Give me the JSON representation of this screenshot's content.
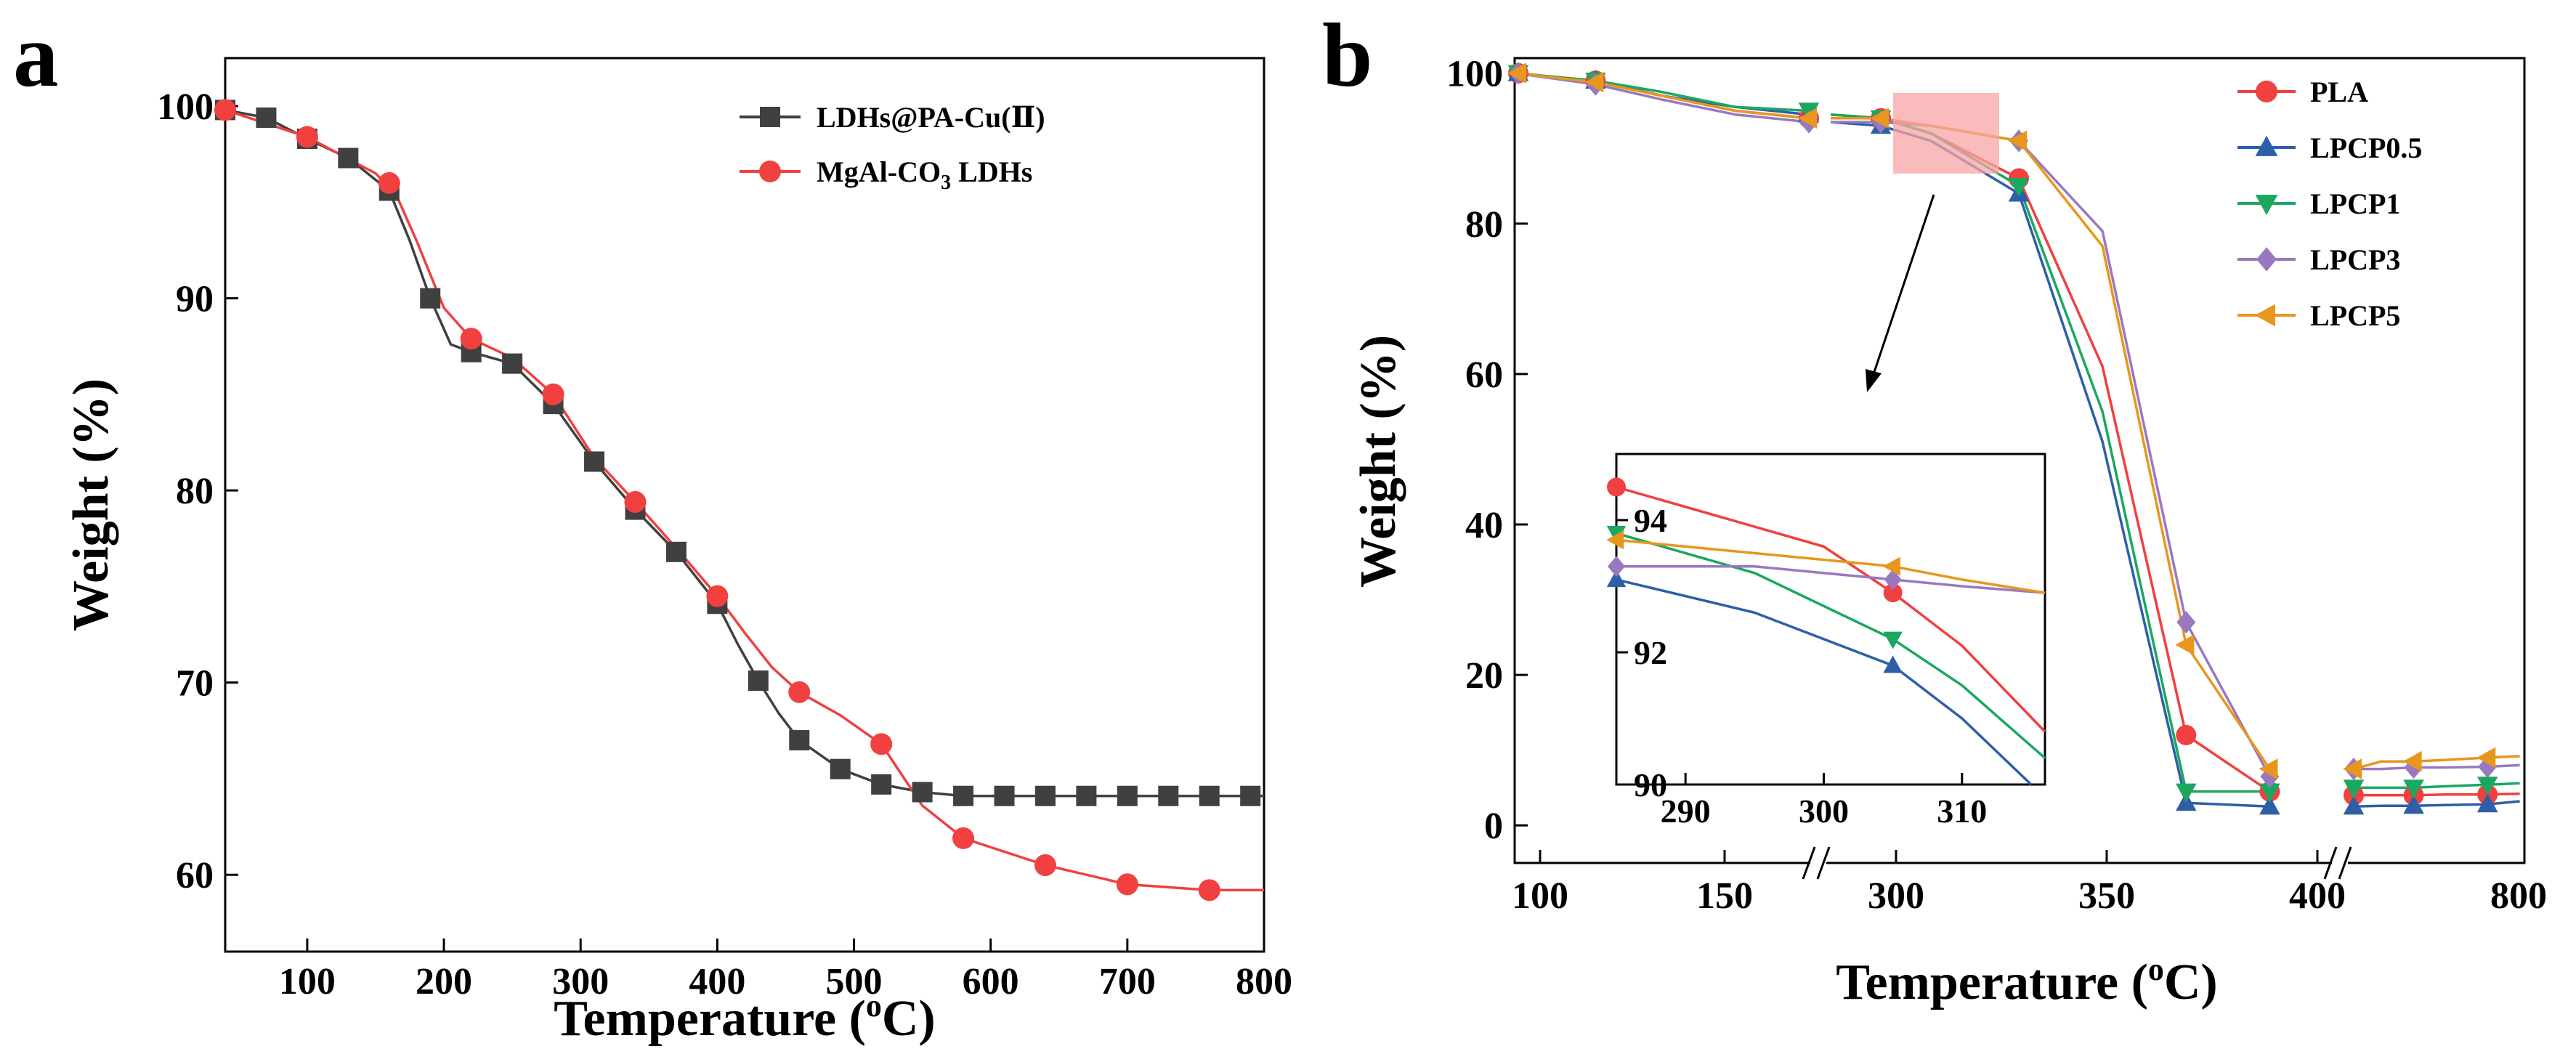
{
  "chart_data": [
    {
      "panel": "a",
      "type": "line",
      "xlabel": "Temperature (oC)",
      "ylabel": "Weight (%)",
      "xlim": [
        40,
        800
      ],
      "ylim": [
        56,
        102.5
      ],
      "xticks": [
        100,
        200,
        300,
        400,
        500,
        600,
        700,
        800
      ],
      "yticks": [
        60,
        70,
        80,
        90,
        100
      ],
      "legend_position": "top-right",
      "series": [
        {
          "name": "LDHs@PA-Cu(Ⅱ)",
          "color": "#404040",
          "marker": "square",
          "x": [
            40,
            70,
            100,
            130,
            160,
            190,
            220,
            250,
            280,
            310,
            340,
            370,
            400,
            430,
            460,
            490,
            520,
            550,
            580,
            610,
            640,
            670,
            700,
            730,
            760,
            790
          ],
          "y": [
            99.8,
            99.4,
            98.3,
            97.3,
            95.6,
            90.0,
            87.2,
            86.6,
            84.5,
            81.5,
            79.0,
            76.8,
            74.1,
            70.1,
            67.0,
            65.5,
            64.7,
            64.3,
            64.1,
            64.1,
            64.1,
            64.1,
            64.1,
            64.1,
            64.1,
            64.1
          ],
          "curve_x": [
            40,
            70,
            100,
            130,
            160,
            175,
            190,
            205,
            220,
            250,
            280,
            310,
            340,
            370,
            400,
            415,
            430,
            445,
            460,
            490,
            520,
            550,
            580,
            620,
            700,
            800
          ],
          "curve_y": [
            99.8,
            99.4,
            98.3,
            97.3,
            95.6,
            93.0,
            90.0,
            87.6,
            87.2,
            86.6,
            84.5,
            81.5,
            79.0,
            76.8,
            74.1,
            72.0,
            70.1,
            68.4,
            67.0,
            65.5,
            64.7,
            64.3,
            64.1,
            64.1,
            64.1,
            64.1
          ]
        },
        {
          "name": "MgAl-CO3 LDHs",
          "color": "#f04040",
          "marker": "circle",
          "x": [
            40,
            100,
            160,
            220,
            280,
            340,
            400,
            460,
            520,
            580,
            640,
            700,
            760
          ],
          "y": [
            99.8,
            98.4,
            96.0,
            87.9,
            85.0,
            79.4,
            74.5,
            69.5,
            66.8,
            61.9,
            60.5,
            59.5,
            59.2
          ],
          "curve_x": [
            40,
            100,
            150,
            165,
            180,
            200,
            220,
            250,
            280,
            310,
            340,
            370,
            400,
            420,
            440,
            460,
            490,
            520,
            535,
            550,
            580,
            640,
            700,
            760,
            800
          ],
          "curve_y": [
            99.8,
            98.4,
            96.5,
            95.4,
            93.0,
            89.5,
            87.9,
            86.9,
            85.0,
            81.7,
            79.4,
            77.0,
            74.5,
            72.6,
            70.8,
            69.5,
            68.3,
            66.8,
            65.2,
            63.6,
            61.9,
            60.5,
            59.5,
            59.2,
            59.2
          ]
        }
      ]
    },
    {
      "panel": "b",
      "type": "line",
      "xlabel": "Temperature (oC)",
      "ylabel": "Weight (%)",
      "x_axis_breaks": "two breaks: one between 150 and ~285 (°C), one just after 400",
      "xticks": [
        100,
        150,
        300,
        350,
        400,
        800
      ],
      "yticks": [
        0,
        20,
        40,
        60,
        80,
        100
      ],
      "ylim": [
        -5,
        102
      ],
      "legend_position": "top-right",
      "series": [
        {
          "name": "PLA",
          "color": "#f04040",
          "marker": "circle",
          "x": [
            90,
            112,
            130,
            150,
            170,
            285,
            297,
            309,
            330,
            350,
            370,
            390,
            430,
            490,
            560,
            630,
            720,
            790
          ],
          "y": [
            100,
            99,
            97,
            95,
            94,
            94.5,
            94,
            92,
            86,
            61,
            12,
            4.5,
            4,
            4,
            4,
            4.1,
            4.1,
            4.2
          ]
        },
        {
          "name": "LPCP0.5",
          "color": "#2d5fa8",
          "marker": "triangle-up",
          "x": [
            90,
            112,
            130,
            150,
            170,
            285,
            297,
            309,
            330,
            350,
            370,
            390,
            430,
            490,
            560,
            630,
            720,
            790
          ],
          "y": [
            100,
            99,
            97,
            95.5,
            94.5,
            93.5,
            93,
            91,
            84,
            51,
            3,
            2.5,
            2.5,
            2.6,
            2.6,
            2.7,
            2.8,
            3.2
          ]
        },
        {
          "name": "LPCP1",
          "color": "#1aa860",
          "marker": "triangle-down",
          "x": [
            90,
            112,
            130,
            150,
            170,
            285,
            297,
            309,
            330,
            350,
            370,
            390,
            430,
            490,
            560,
            630,
            720,
            790
          ],
          "y": [
            100,
            99,
            97.5,
            95.5,
            95,
            94.5,
            94,
            92,
            85,
            55,
            4.5,
            4.5,
            5,
            5,
            5,
            5.2,
            5.4,
            5.6
          ]
        },
        {
          "name": "LPCP3",
          "color": "#9a78c0",
          "marker": "diamond",
          "x": [
            90,
            112,
            130,
            150,
            170,
            285,
            297,
            309,
            330,
            350,
            370,
            390,
            430,
            490,
            560,
            630,
            720,
            790
          ],
          "y": [
            100,
            98.5,
            96.5,
            94.5,
            93.5,
            93.5,
            93.5,
            93,
            91,
            79,
            27,
            6.5,
            7.5,
            7.5,
            7.7,
            7.7,
            7.8,
            8
          ]
        },
        {
          "name": "LPCP5",
          "color": "#e8961e",
          "marker": "triangle-left",
          "x": [
            90,
            112,
            130,
            150,
            170,
            285,
            297,
            309,
            330,
            350,
            370,
            390,
            430,
            490,
            560,
            630,
            720,
            790
          ],
          "y": [
            100,
            98.8,
            97,
            95,
            94,
            94,
            94,
            93,
            91,
            77,
            24,
            7.5,
            7.5,
            8.5,
            8.5,
            8.7,
            9,
            9.2
          ]
        }
      ],
      "inset": {
        "xlim": [
          285,
          316
        ],
        "ylim": [
          90,
          95
        ],
        "xticks": [
          290,
          300,
          310
        ],
        "yticks": [
          90,
          92,
          94
        ],
        "highlight_source": "LPCP region ~285-316 °C, ~93-95% on main plot (pink box)",
        "series": [
          {
            "name": "PLA",
            "x": [
              285,
              300,
              305,
              310,
              316
            ],
            "y": [
              94.5,
              93.6,
              92.9,
              92.1,
              90.8
            ],
            "markers_x": [
              285,
              305
            ]
          },
          {
            "name": "LPCP0.5",
            "x": [
              285,
              295,
              305,
              310,
              315
            ],
            "y": [
              93.1,
              92.6,
              91.8,
              91.0,
              90.0
            ],
            "markers_x": [
              285,
              305
            ]
          },
          {
            "name": "LPCP1",
            "x": [
              285,
              295,
              305,
              310,
              316
            ],
            "y": [
              93.8,
              93.2,
              92.2,
              91.5,
              90.4
            ],
            "markers_x": [
              285,
              305
            ]
          },
          {
            "name": "LPCP3",
            "x": [
              285,
              295,
              305,
              310,
              316
            ],
            "y": [
              93.3,
              93.3,
              93.1,
              93.0,
              92.9
            ],
            "markers_x": [
              285,
              305
            ]
          },
          {
            "name": "LPCP5",
            "x": [
              285,
              295,
              305,
              310,
              316
            ],
            "y": [
              93.7,
              93.5,
              93.3,
              93.1,
              92.9
            ],
            "markers_x": [
              285,
              305
            ]
          }
        ]
      }
    }
  ],
  "labels": {
    "panel_a": "a",
    "panel_b": "b",
    "axis_x_word": "Temperature (",
    "axis_x_sup": "o",
    "axis_x_end": "C)",
    "axis_y": "Weight (%)",
    "legend_a": [
      "LDHs@PA-Cu(Ⅱ)",
      "MgAl-CO3 LDHs"
    ]
  }
}
